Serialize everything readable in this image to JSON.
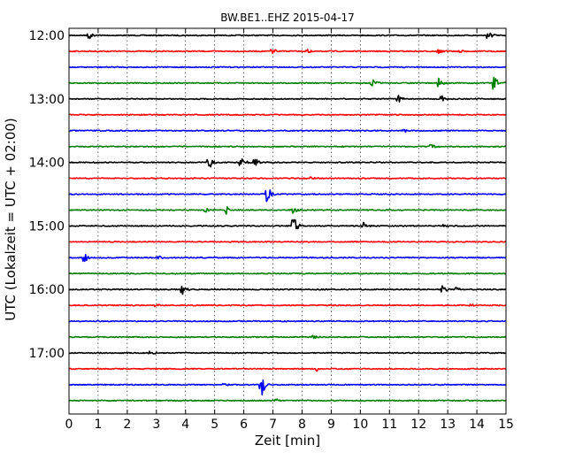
{
  "chart_data": {
    "type": "line",
    "title": "BW.BE1..EHZ 2015-04-17",
    "xlabel": "Zeit  [min]",
    "ylabel": "UTC (Lokalzeit = UTC + 02:00)",
    "xlim": [
      0,
      15
    ],
    "x_ticks": [
      "0",
      "1",
      "2",
      "3",
      "4",
      "5",
      "6",
      "7",
      "8",
      "9",
      "10",
      "11",
      "12",
      "13",
      "14",
      "15"
    ],
    "y_ticks": [
      "12:00",
      "13:00",
      "14:00",
      "15:00",
      "16:00",
      "17:00"
    ],
    "grid": "vertical dotted",
    "color_cycle": [
      "#000000",
      "#ff0000",
      "#0000ff",
      "#008000"
    ],
    "series": [
      {
        "start": "12:00",
        "events": [
          {
            "t": 0.7,
            "amp": 0.35
          },
          {
            "t": 14.4,
            "amp": 0.45
          }
        ]
      },
      {
        "start": "12:15",
        "events": [
          {
            "t": 7.0,
            "amp": 0.25
          },
          {
            "t": 8.2,
            "amp": 0.2
          },
          {
            "t": 12.7,
            "amp": 0.3
          },
          {
            "t": 13.4,
            "amp": 0.2
          }
        ]
      },
      {
        "start": "12:30",
        "events": []
      },
      {
        "start": "12:45",
        "events": [
          {
            "t": 10.4,
            "amp": 0.45
          },
          {
            "t": 12.7,
            "amp": 0.4
          },
          {
            "t": 14.6,
            "amp": 0.9
          }
        ]
      },
      {
        "start": "13:00",
        "events": [
          {
            "t": 11.3,
            "amp": 0.3
          },
          {
            "t": 12.8,
            "amp": 0.3
          }
        ]
      },
      {
        "start": "13:15",
        "events": []
      },
      {
        "start": "13:30",
        "events": [
          {
            "t": 11.5,
            "amp": 0.2
          }
        ]
      },
      {
        "start": "13:45",
        "events": [
          {
            "t": 12.4,
            "amp": 0.35
          }
        ]
      },
      {
        "start": "14:00",
        "events": [
          {
            "t": 4.8,
            "amp": 0.55
          },
          {
            "t": 5.9,
            "amp": 0.6
          },
          {
            "t": 6.4,
            "amp": 0.3
          }
        ]
      },
      {
        "start": "14:15",
        "events": [
          {
            "t": 8.3,
            "amp": 0.3
          }
        ]
      },
      {
        "start": "14:30",
        "events": [
          {
            "t": 6.8,
            "amp": 0.8
          }
        ]
      },
      {
        "start": "14:45",
        "events": [
          {
            "t": 4.7,
            "amp": 0.3
          },
          {
            "t": 5.4,
            "amp": 0.35
          },
          {
            "t": 7.7,
            "amp": 0.35
          }
        ]
      },
      {
        "start": "15:00",
        "events": [
          {
            "t": 7.7,
            "amp": 1.0
          },
          {
            "t": 10.1,
            "amp": 0.3
          },
          {
            "t": 12.9,
            "amp": 0.2
          }
        ]
      },
      {
        "start": "15:15",
        "events": []
      },
      {
        "start": "15:30",
        "events": [
          {
            "t": 0.5,
            "amp": 0.5
          },
          {
            "t": 3.1,
            "amp": 0.2
          }
        ]
      },
      {
        "start": "15:45",
        "events": []
      },
      {
        "start": "16:00",
        "events": [
          {
            "t": 3.9,
            "amp": 0.5
          },
          {
            "t": 12.8,
            "amp": 0.35
          },
          {
            "t": 13.3,
            "amp": 0.2
          }
        ]
      },
      {
        "start": "16:15",
        "events": [
          {
            "t": 3.0,
            "amp": 0.15
          },
          {
            "t": 13.8,
            "amp": 0.15
          }
        ]
      },
      {
        "start": "16:30",
        "events": []
      },
      {
        "start": "16:45",
        "events": [
          {
            "t": 8.4,
            "amp": 0.2
          }
        ]
      },
      {
        "start": "17:00",
        "events": [
          {
            "t": 2.8,
            "amp": 0.2
          }
        ]
      },
      {
        "start": "17:15",
        "events": [
          {
            "t": 8.5,
            "amp": 0.2
          }
        ]
      },
      {
        "start": "17:30",
        "events": [
          {
            "t": 5.3,
            "amp": 0.2
          },
          {
            "t": 6.6,
            "amp": 1.1
          }
        ]
      },
      {
        "start": "17:45",
        "events": [
          {
            "t": 7.1,
            "amp": 0.15
          }
        ]
      }
    ]
  }
}
